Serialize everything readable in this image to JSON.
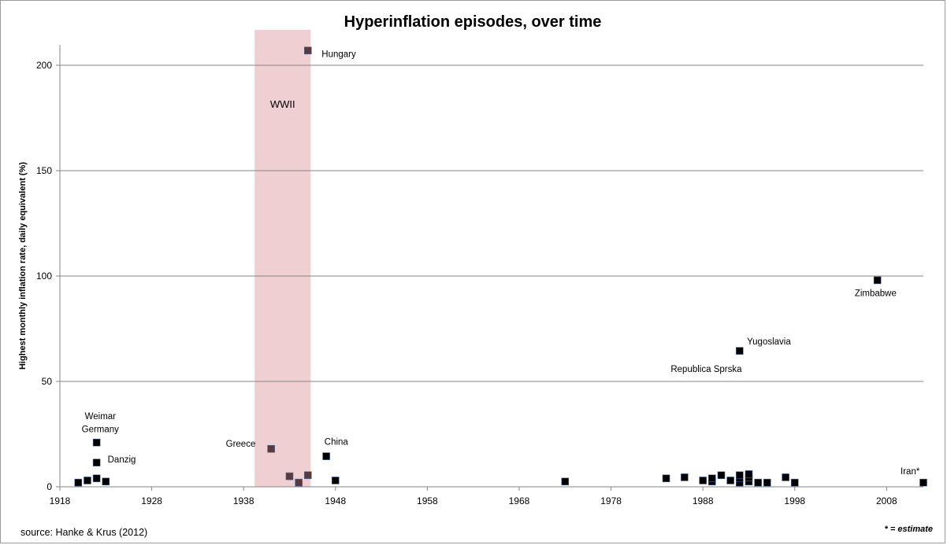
{
  "chart_data": {
    "type": "scatter",
    "title": "Hyperinflation episodes, over time",
    "xlabel": "",
    "ylabel": "Highest monthly inflation rate, daily equivalent (%)",
    "xlim": [
      1918,
      2012
    ],
    "ylim": [
      0,
      210
    ],
    "xticks": [
      1918,
      1928,
      1938,
      1948,
      1958,
      1968,
      1978,
      1988,
      1998,
      2008
    ],
    "yticks": [
      0,
      50,
      100,
      150,
      200
    ],
    "grid": "horizontal",
    "shaded_period": {
      "label": "WWII",
      "x_start": 1939.2,
      "x_end": 1945.3,
      "color": "#efcfd1"
    },
    "colors": {
      "point": "#000000",
      "point_in_period": "#5a3a3e",
      "point_edge": "#4a6aa0",
      "grid": "#868686",
      "axis": "#868686"
    },
    "points": [
      {
        "x": 1920,
        "y": 2
      },
      {
        "x": 1921,
        "y": 3
      },
      {
        "x": 1922,
        "y": 21
      },
      {
        "x": 1922,
        "y": 4
      },
      {
        "x": 1922,
        "y": 11.5
      },
      {
        "x": 1923,
        "y": 2.5
      },
      {
        "x": 1941,
        "y": 18
      },
      {
        "x": 1943,
        "y": 5
      },
      {
        "x": 1944,
        "y": 2
      },
      {
        "x": 1945,
        "y": 5.5
      },
      {
        "x": 1945,
        "y": 207
      },
      {
        "x": 1947,
        "y": 14.5
      },
      {
        "x": 1948,
        "y": 3
      },
      {
        "x": 1973,
        "y": 2.5
      },
      {
        "x": 1984,
        "y": 4
      },
      {
        "x": 1986,
        "y": 4.5
      },
      {
        "x": 1988,
        "y": 3
      },
      {
        "x": 1989,
        "y": 2.5
      },
      {
        "x": 1989,
        "y": 4
      },
      {
        "x": 1990,
        "y": 5.5
      },
      {
        "x": 1991,
        "y": 3
      },
      {
        "x": 1992,
        "y": 2
      },
      {
        "x": 1992,
        "y": 4
      },
      {
        "x": 1992,
        "y": 5.5
      },
      {
        "x": 1992,
        "y": 64.5
      },
      {
        "x": 1993,
        "y": 2.5
      },
      {
        "x": 1993,
        "y": 4.5
      },
      {
        "x": 1993,
        "y": 6
      },
      {
        "x": 1994,
        "y": 2
      },
      {
        "x": 1995,
        "y": 2
      },
      {
        "x": 1997,
        "y": 4.5
      },
      {
        "x": 1998,
        "y": 2
      },
      {
        "x": 2007,
        "y": 98
      },
      {
        "x": 2012,
        "y": 2
      }
    ],
    "annotations": [
      {
        "text": "Weimar",
        "x": 1922.4,
        "y": 33.5,
        "anchor": "middle"
      },
      {
        "text": "Germany",
        "x": 1922.4,
        "y": 27.5,
        "anchor": "middle"
      },
      {
        "text": "Danzig",
        "x": 1923.2,
        "y": 13,
        "anchor": "start"
      },
      {
        "text": "Greece",
        "x": 1939.3,
        "y": 20.5,
        "anchor": "end"
      },
      {
        "text": "Hungary",
        "x": 1946.5,
        "y": 205.5,
        "anchor": "start"
      },
      {
        "text": "China",
        "x": 1946.8,
        "y": 21.5,
        "anchor": "start"
      },
      {
        "text": "Yugoslavia",
        "x": 1992.8,
        "y": 69,
        "anchor": "start"
      },
      {
        "text": "Republica Sprska",
        "x": 1984.5,
        "y": 56,
        "anchor": "start"
      },
      {
        "text": "Zimbabwe",
        "x": 2006.8,
        "y": 92,
        "anchor": "middle"
      },
      {
        "text": "Iran*",
        "x": 2011.6,
        "y": 7.5,
        "anchor": "end"
      }
    ]
  },
  "source": "source: Hanke & Krus (2012)",
  "footnote": "* = estimate"
}
